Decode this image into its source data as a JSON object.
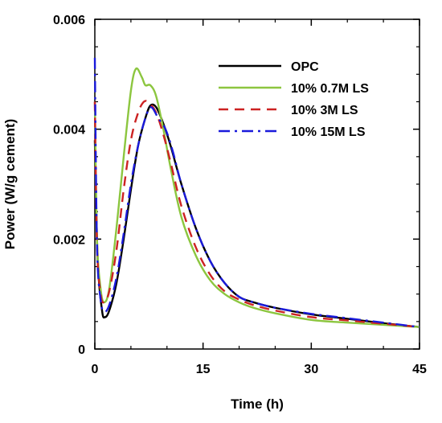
{
  "chart_data": {
    "type": "line",
    "xlabel": "Time (h)",
    "ylabel": "Power (W/g cement)",
    "xlim": [
      0,
      45
    ],
    "ylim": [
      0,
      0.006
    ],
    "xticks": [
      "0",
      "15",
      "30",
      "45"
    ],
    "yticks": [
      "0",
      "0.002",
      "0.004",
      "0.006"
    ],
    "grid": false,
    "legend_position": "top-right",
    "series": [
      {
        "name": "OPC",
        "color": "#000000",
        "dash": "solid",
        "x": [
          0,
          0.4,
          1.0,
          1.4,
          2.0,
          3.0,
          4.0,
          5.0,
          6.0,
          7.0,
          7.7,
          8.5,
          9.5,
          10.5,
          12,
          14,
          16,
          18,
          20,
          22,
          25,
          30,
          35,
          40,
          45
        ],
        "y": [
          0.0038,
          0.0016,
          0.0007,
          0.00058,
          0.0007,
          0.0012,
          0.002,
          0.0029,
          0.0037,
          0.0042,
          0.00443,
          0.0044,
          0.0041,
          0.0037,
          0.003,
          0.0022,
          0.0016,
          0.0012,
          0.00095,
          0.00085,
          0.00075,
          0.00063,
          0.00055,
          0.00047,
          0.0004
        ]
      },
      {
        "name": "10% 0.7M LS",
        "color": "#8cc63f",
        "dash": "solid",
        "x": [
          0,
          0.3,
          0.8,
          1.3,
          2.0,
          3.0,
          4.0,
          5.0,
          5.7,
          6.5,
          7.0,
          7.7,
          8.5,
          9.5,
          10.5,
          12,
          14,
          16,
          18,
          20,
          22,
          25,
          30,
          35,
          40,
          45
        ],
        "y": [
          0.0045,
          0.002,
          0.0011,
          0.00085,
          0.0011,
          0.0022,
          0.0035,
          0.0047,
          0.0051,
          0.00495,
          0.0048,
          0.0048,
          0.0046,
          0.004,
          0.0033,
          0.0024,
          0.0017,
          0.00125,
          0.001,
          0.00085,
          0.00075,
          0.00065,
          0.00053,
          0.00048,
          0.00044,
          0.0004
        ]
      },
      {
        "name": "10% 3M LS",
        "color": "#cc2222",
        "dash": "dashed",
        "x": [
          0,
          0.3,
          0.8,
          1.3,
          2.0,
          3.0,
          4.0,
          5.0,
          6.0,
          6.8,
          7.5,
          8.5,
          9.5,
          10.5,
          12,
          14,
          16,
          18,
          20,
          22,
          25,
          30,
          35,
          40,
          45
        ],
        "y": [
          0.0045,
          0.0019,
          0.001,
          0.00085,
          0.00105,
          0.0018,
          0.0029,
          0.0038,
          0.0043,
          0.0045,
          0.00448,
          0.0043,
          0.0039,
          0.0034,
          0.0026,
          0.00185,
          0.00135,
          0.00105,
          0.0009,
          0.0008,
          0.0007,
          0.00058,
          0.00052,
          0.00046,
          0.0004
        ]
      },
      {
        "name": "10% 15M LS",
        "color": "#1a1adb",
        "dash": "dashdot",
        "x": [
          0,
          0.3,
          0.8,
          1.3,
          2.0,
          3.0,
          4.0,
          5.0,
          6.0,
          7.0,
          7.8,
          8.8,
          9.8,
          10.8,
          12,
          14,
          16,
          18,
          20,
          22,
          25,
          30,
          35,
          40,
          45
        ],
        "y": [
          0.0053,
          0.0019,
          0.0009,
          0.00068,
          0.0008,
          0.0013,
          0.0021,
          0.003,
          0.0037,
          0.0042,
          0.0044,
          0.0042,
          0.004,
          0.0036,
          0.003,
          0.0022,
          0.0016,
          0.0012,
          0.00095,
          0.00085,
          0.00075,
          0.00064,
          0.00056,
          0.00048,
          0.0004
        ]
      }
    ]
  }
}
